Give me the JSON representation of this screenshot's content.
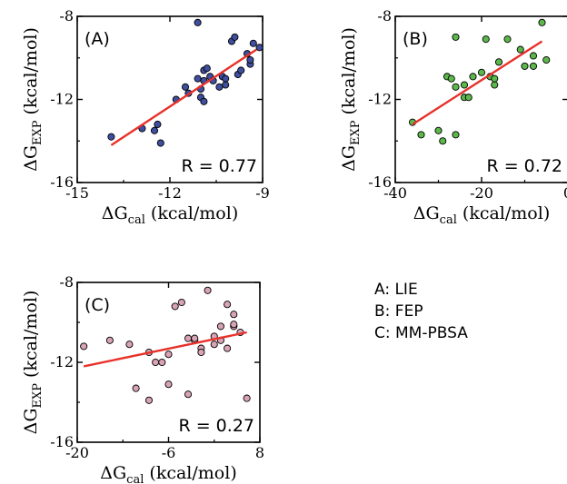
{
  "legend": {
    "items": [
      "A: LIE",
      "B: FEP",
      "C: MM-PBSA"
    ]
  },
  "chart_data": [
    {
      "type": "scatter",
      "panel_label": "(A)",
      "annotation": "R = 0.77",
      "xlabel": {
        "main": "ΔG",
        "sub": "cal",
        "tail": " (kcal/mol)"
      },
      "ylabel": {
        "main": "ΔG",
        "sub": "EXP",
        "tail": " (kcal/mol)"
      },
      "xlim": [
        -15,
        -9
      ],
      "ylim": [
        -16,
        -8
      ],
      "xticks": [
        -15,
        -12,
        -9
      ],
      "yticks": [
        -16,
        -12,
        -8
      ],
      "marker_color": "#3f4e9e",
      "fit_color": "#e8312a",
      "fit_line": {
        "x": [
          -13.9,
          -9.2
        ],
        "y": [
          -14.2,
          -9.6
        ]
      },
      "points": [
        {
          "x": -13.9,
          "y": -13.8
        },
        {
          "x": -12.9,
          "y": -13.4
        },
        {
          "x": -12.5,
          "y": -13.5
        },
        {
          "x": -12.4,
          "y": -13.2
        },
        {
          "x": -12.3,
          "y": -14.1
        },
        {
          "x": -11.8,
          "y": -12.0
        },
        {
          "x": -11.5,
          "y": -11.4
        },
        {
          "x": -11.4,
          "y": -11.7
        },
        {
          "x": -11.1,
          "y": -8.3
        },
        {
          "x": -11.1,
          "y": -11.0
        },
        {
          "x": -11.0,
          "y": -11.5
        },
        {
          "x": -11.0,
          "y": -11.9
        },
        {
          "x": -10.9,
          "y": -10.6
        },
        {
          "x": -10.9,
          "y": -11.1
        },
        {
          "x": -10.9,
          "y": -12.1
        },
        {
          "x": -10.8,
          "y": -10.5
        },
        {
          "x": -10.7,
          "y": -10.9
        },
        {
          "x": -10.6,
          "y": -11.1
        },
        {
          "x": -10.4,
          "y": -11.4
        },
        {
          "x": -10.3,
          "y": -10.9
        },
        {
          "x": -10.2,
          "y": -11.0
        },
        {
          "x": -10.2,
          "y": -11.3
        },
        {
          "x": -10.0,
          "y": -9.2
        },
        {
          "x": -9.9,
          "y": -9.0
        },
        {
          "x": -9.8,
          "y": -10.8
        },
        {
          "x": -9.7,
          "y": -10.6
        },
        {
          "x": -9.5,
          "y": -9.8
        },
        {
          "x": -9.4,
          "y": -10.3
        },
        {
          "x": -9.4,
          "y": -10.1
        },
        {
          "x": -9.3,
          "y": -9.3
        },
        {
          "x": -9.1,
          "y": -9.5
        }
      ]
    },
    {
      "type": "scatter",
      "panel_label": "(B)",
      "annotation": "R = 0.72",
      "xlabel": {
        "main": "ΔG",
        "sub": "cal",
        "tail": " (kcal/mol)"
      },
      "ylabel": {
        "main": "ΔG",
        "sub": "EXP",
        "tail": " (kcal/mol)"
      },
      "xlim": [
        -40,
        0
      ],
      "ylim": [
        -16,
        -8
      ],
      "xticks": [
        -40,
        -20,
        0
      ],
      "yticks": [
        -16,
        -12,
        -8
      ],
      "marker_color": "#5cb84a",
      "fit_color": "#e8312a",
      "fit_line": {
        "x": [
          -36,
          -6
        ],
        "y": [
          -13.2,
          -9.2
        ]
      },
      "points": [
        {
          "x": -36,
          "y": -13.1
        },
        {
          "x": -34,
          "y": -13.7
        },
        {
          "x": -30,
          "y": -13.5
        },
        {
          "x": -29,
          "y": -14.0
        },
        {
          "x": -26,
          "y": -13.7
        },
        {
          "x": -28,
          "y": -10.9
        },
        {
          "x": -27,
          "y": -11.0
        },
        {
          "x": -26,
          "y": -9.0
        },
        {
          "x": -26,
          "y": -11.4
        },
        {
          "x": -24,
          "y": -11.3
        },
        {
          "x": -24,
          "y": -11.9
        },
        {
          "x": -23,
          "y": -11.9
        },
        {
          "x": -22,
          "y": -10.9
        },
        {
          "x": -20,
          "y": -10.7
        },
        {
          "x": -19,
          "y": -9.1
        },
        {
          "x": -18,
          "y": -10.9
        },
        {
          "x": -17,
          "y": -11.3
        },
        {
          "x": -17,
          "y": -11.0
        },
        {
          "x": -16,
          "y": -10.2
        },
        {
          "x": -14,
          "y": -9.1
        },
        {
          "x": -11,
          "y": -9.6
        },
        {
          "x": -10,
          "y": -10.4
        },
        {
          "x": -8,
          "y": -10.4
        },
        {
          "x": -8,
          "y": -9.9
        },
        {
          "x": -6,
          "y": -8.3
        },
        {
          "x": -5,
          "y": -10.1
        }
      ]
    },
    {
      "type": "scatter",
      "panel_label": "(C)",
      "annotation": "R = 0.27",
      "xlabel": {
        "main": "ΔG",
        "sub": "cal",
        "tail": " (kcal/mol)"
      },
      "ylabel": {
        "main": "ΔG",
        "sub": "EXP",
        "tail": " (kcal/mol)"
      },
      "xlim": [
        -20,
        8
      ],
      "ylim": [
        -16,
        -8
      ],
      "xticks": [
        -20,
        -6,
        8
      ],
      "yticks": [
        -16,
        -12,
        -8
      ],
      "marker_color": "#d8a3b5",
      "fit_color": "#e8312a",
      "fit_line": {
        "x": [
          -19,
          6
        ],
        "y": [
          -12.2,
          -10.5
        ]
      },
      "points": [
        {
          "x": -19,
          "y": -11.2
        },
        {
          "x": -15,
          "y": -10.9
        },
        {
          "x": -12,
          "y": -11.1
        },
        {
          "x": -11,
          "y": -13.3
        },
        {
          "x": -9,
          "y": -13.9
        },
        {
          "x": -8,
          "y": -12.0
        },
        {
          "x": -7,
          "y": -12.0
        },
        {
          "x": -6,
          "y": -11.6
        },
        {
          "x": -6,
          "y": -13.1
        },
        {
          "x": -5,
          "y": -9.2
        },
        {
          "x": -4,
          "y": -9.0
        },
        {
          "x": -3,
          "y": -10.8
        },
        {
          "x": -3,
          "y": -13.6
        },
        {
          "x": -2,
          "y": -10.9
        },
        {
          "x": -1,
          "y": -11.3
        },
        {
          "x": -1,
          "y": -11.5
        },
        {
          "x": 0,
          "y": -8.4
        },
        {
          "x": 1,
          "y": -10.7
        },
        {
          "x": 1,
          "y": -11.1
        },
        {
          "x": 2,
          "y": -10.2
        },
        {
          "x": 2,
          "y": -10.9
        },
        {
          "x": 3,
          "y": -9.1
        },
        {
          "x": 3,
          "y": -11.3
        },
        {
          "x": 4,
          "y": -9.6
        },
        {
          "x": 4,
          "y": -10.2
        },
        {
          "x": 5,
          "y": -10.5
        },
        {
          "x": 6,
          "y": -13.8
        },
        {
          "x": -9,
          "y": -11.5
        },
        {
          "x": -2,
          "y": -10.8
        },
        {
          "x": 4,
          "y": -10.1
        }
      ]
    }
  ]
}
